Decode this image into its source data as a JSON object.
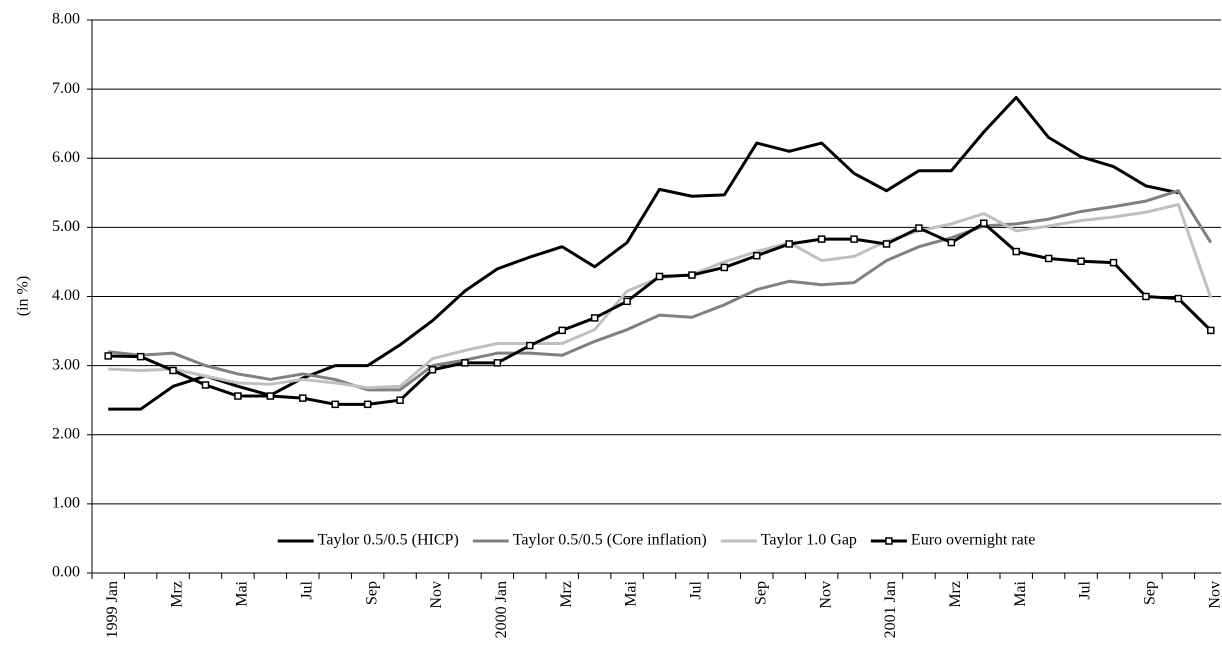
{
  "chart_data": {
    "type": "line",
    "y_label": "(in %)",
    "categories": [
      "1999 Jan",
      null,
      "Mrz",
      null,
      "Mai",
      null,
      "Jul",
      null,
      "Sep",
      null,
      "Nov",
      null,
      "2000 Jan",
      null,
      "Mrz",
      null,
      "Mai",
      null,
      "Jul",
      null,
      "Sep",
      null,
      "Nov",
      null,
      "2001 Jan",
      null,
      "Mrz",
      null,
      "Mai",
      null,
      "Jul",
      null,
      "Sep",
      null,
      "Nov"
    ],
    "series": [
      {
        "name": "Taylor 0.5/0.5 (HICP)",
        "color": "#000000",
        "values": [
          2.37,
          2.37,
          2.7,
          2.85,
          2.7,
          2.57,
          2.82,
          3.0,
          3.0,
          3.3,
          3.65,
          4.08,
          4.4,
          4.57,
          4.72,
          4.43,
          4.78,
          5.55,
          5.45,
          5.47,
          6.22,
          6.1,
          6.22,
          5.78,
          5.53,
          5.82,
          5.82,
          6.38,
          6.88,
          6.3,
          6.02,
          5.88,
          5.6,
          5.5,
          null
        ]
      },
      {
        "name": "Taylor 0.5/0.5 (Core inflation)",
        "color": "#808080",
        "values": [
          3.2,
          3.15,
          3.18,
          3.0,
          2.88,
          2.8,
          2.88,
          2.8,
          2.65,
          2.65,
          3.0,
          3.08,
          3.18,
          3.18,
          3.15,
          3.35,
          3.52,
          3.73,
          3.7,
          3.88,
          4.1,
          4.22,
          4.17,
          4.2,
          4.52,
          4.72,
          4.85,
          5.02,
          5.05,
          5.12,
          5.23,
          5.3,
          5.38,
          5.53,
          4.78
        ]
      },
      {
        "name": "Taylor 1.0 Gap",
        "color": "#c0c0c0",
        "values": [
          2.95,
          2.93,
          2.95,
          2.85,
          2.75,
          2.73,
          2.8,
          2.75,
          2.68,
          2.7,
          3.1,
          3.22,
          3.32,
          3.32,
          3.32,
          3.52,
          4.08,
          4.27,
          4.32,
          4.5,
          4.65,
          4.78,
          4.52,
          4.58,
          4.8,
          4.95,
          5.05,
          5.2,
          4.95,
          5.02,
          5.1,
          5.15,
          5.22,
          5.33,
          3.98
        ]
      },
      {
        "name": "Euro overnight rate",
        "color": "#000000",
        "marker": "square",
        "values": [
          3.14,
          3.13,
          2.93,
          2.72,
          2.56,
          2.56,
          2.53,
          2.44,
          2.44,
          2.5,
          2.94,
          3.04,
          3.04,
          3.29,
          3.51,
          3.69,
          3.93,
          4.29,
          4.31,
          4.42,
          4.59,
          4.76,
          4.83,
          4.83,
          4.76,
          4.99,
          4.78,
          5.06,
          4.65,
          4.55,
          4.51,
          4.49,
          4.0,
          3.97,
          3.51
        ]
      }
    ],
    "ylim": [
      0,
      8
    ],
    "yticks": [
      {
        "value": 0,
        "label": "0.00"
      },
      {
        "value": 1,
        "label": "1.00"
      },
      {
        "value": 2,
        "label": "2.00"
      },
      {
        "value": 3,
        "label": "3.00"
      },
      {
        "value": 4,
        "label": "4.00"
      },
      {
        "value": 5,
        "label": "5.00"
      },
      {
        "value": 6,
        "label": "6.00"
      },
      {
        "value": 7,
        "label": "7.00"
      },
      {
        "value": 8,
        "label": "8.00"
      }
    ],
    "grid": true,
    "legend": "bottom"
  }
}
